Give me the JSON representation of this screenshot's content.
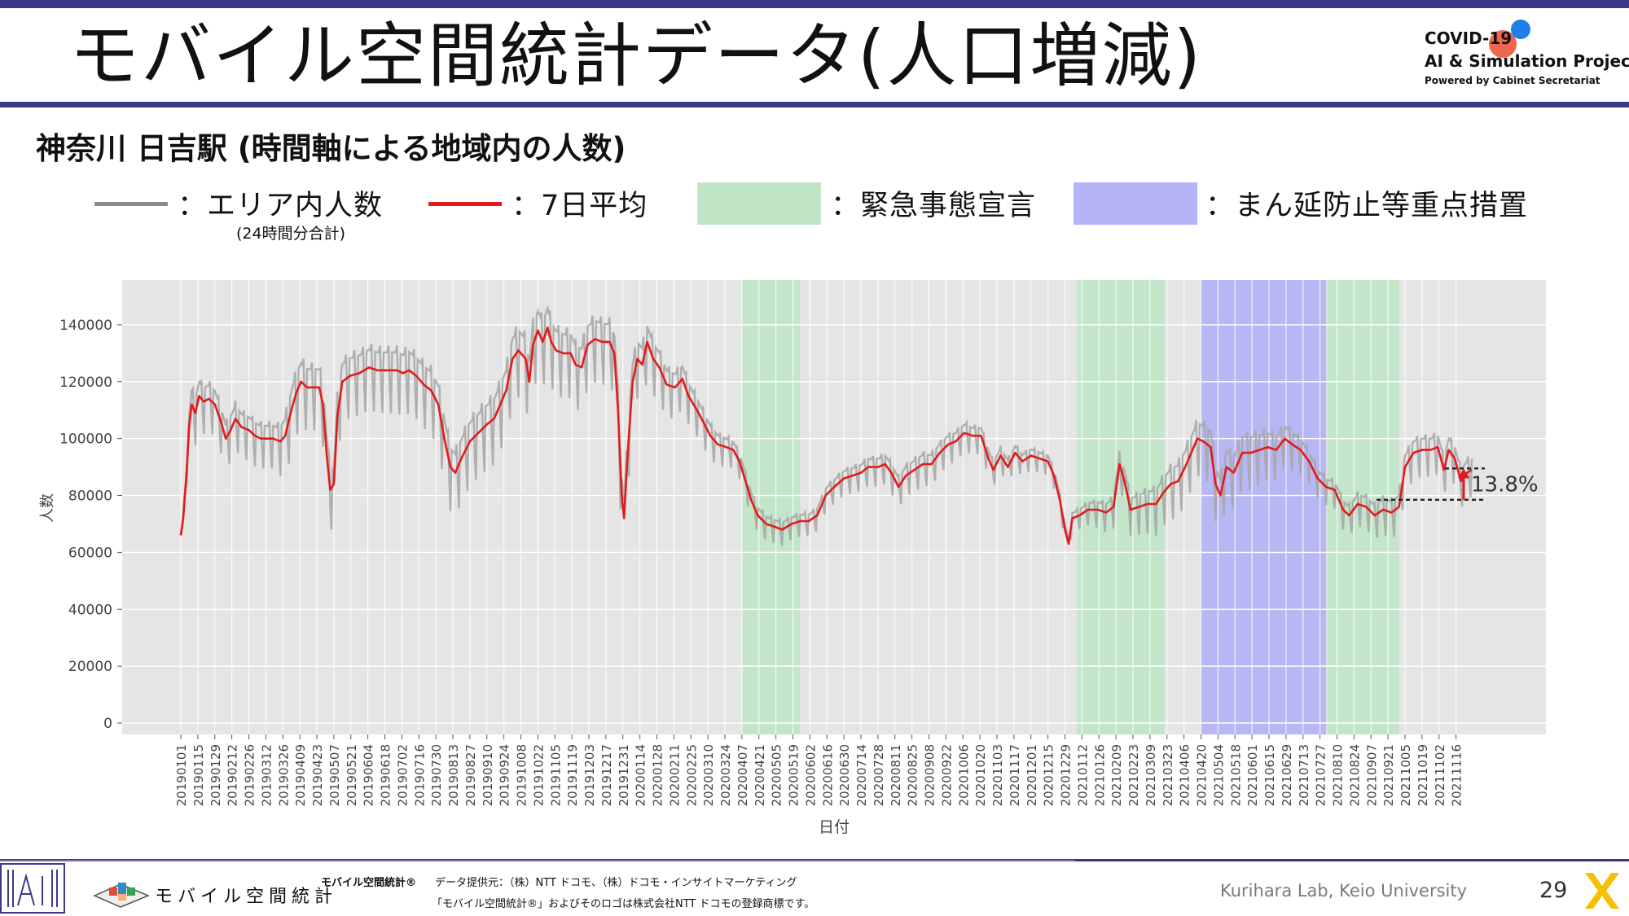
{
  "header": {
    "title": "モバイル空間統計データ(人口増減)",
    "logo_line1": "COVID-19",
    "logo_line2": "AI & Simulation Project",
    "logo_line3": "Powered by Cabinet Secretariat"
  },
  "subtitle": "神奈川 日吉駅 (時間軸による地域内の人数)",
  "legend": {
    "area_count": "：エリア内人数",
    "area_count_note": "(24時間分合計)",
    "avg7": "：7日平均",
    "emergency": "：緊急事態宣言",
    "priority": "：まん延防止等重点措置"
  },
  "colors": {
    "raw_line": "#a9a9a9",
    "avg_line": "#e31a1c",
    "emergency_band": "#bfe5c6",
    "priority_band": "#b4b4f7",
    "plot_bg": "#e5e5e5",
    "brand": "#3b3a86"
  },
  "chart_data": {
    "type": "line",
    "xlabel": "日付",
    "ylabel": "人数",
    "ylim": [
      0,
      150000
    ],
    "yticks": [
      0,
      20000,
      40000,
      60000,
      80000,
      100000,
      120000,
      140000
    ],
    "ytick_labels": [
      "0",
      "20000",
      "40000",
      "60000",
      "80000",
      "100000",
      "120000",
      "140000"
    ],
    "xlim": [
      "2019-01-01",
      "2021-12-01"
    ],
    "x_tick_labels": [
      "20190101",
      "20190115",
      "20190129",
      "20190212",
      "20190226",
      "20190312",
      "20190326",
      "20190409",
      "20190423",
      "20190507",
      "20190521",
      "20190604",
      "20190618",
      "20190702",
      "20190716",
      "20190730",
      "20190813",
      "20190827",
      "20190910",
      "20190924",
      "20191008",
      "20191022",
      "20191105",
      "20191119",
      "20191203",
      "20191217",
      "20191231",
      "20200114",
      "20200128",
      "20200211",
      "20200225",
      "20200310",
      "20200324",
      "20200407",
      "20200421",
      "20200505",
      "20200519",
      "20200602",
      "20200616",
      "20200630",
      "20200714",
      "20200728",
      "20200811",
      "20200825",
      "20200908",
      "20200922",
      "20201006",
      "20201020",
      "20201103",
      "20201117",
      "20201201",
      "20201215",
      "20201229",
      "20210112",
      "20210126",
      "20210209",
      "20210223",
      "20210309",
      "20210323",
      "20210406",
      "20210420",
      "20210504",
      "20210518",
      "20210601",
      "20210615",
      "20210629",
      "20210713",
      "20210727",
      "20210810",
      "20210824",
      "20210907",
      "20210921",
      "20211005",
      "20211019",
      "20211102",
      "20211116"
    ],
    "grid": true,
    "bands": [
      {
        "type": "emergency",
        "start": "2020-04-07",
        "end": "2020-05-25"
      },
      {
        "type": "emergency",
        "start": "2021-01-08",
        "end": "2021-03-21"
      },
      {
        "type": "priority",
        "start": "2021-04-20",
        "end": "2021-08-01"
      },
      {
        "type": "emergency",
        "start": "2021-08-02",
        "end": "2021-09-30"
      }
    ],
    "series": [
      {
        "name": "エリア内人数",
        "style": "raw",
        "amplitude": [
          [
            "2019-01-01",
            0
          ],
          [
            "2019-01-10",
            22000
          ],
          [
            "2019-03-20",
            20000
          ],
          [
            "2019-04-01",
            30000
          ],
          [
            "2019-05-08",
            28000
          ],
          [
            "2019-09-01",
            30000
          ],
          [
            "2019-10-01",
            32000
          ],
          [
            "2020-01-05",
            28000
          ],
          [
            "2020-04-01",
            12000
          ],
          [
            "2020-06-01",
            10000
          ],
          [
            "2020-09-01",
            15000
          ],
          [
            "2021-01-04",
            8000
          ],
          [
            "2021-04-01",
            25000
          ],
          [
            "2021-06-01",
            25000
          ],
          [
            "2021-08-01",
            12000
          ],
          [
            "2021-10-01",
            18000
          ],
          [
            "2021-11-30",
            18000
          ]
        ]
      },
      {
        "name": "7日平均",
        "style": "avg",
        "points": [
          [
            "2019-01-01",
            66000
          ],
          [
            "2019-01-03",
            72000
          ],
          [
            "2019-01-06",
            90000
          ],
          [
            "2019-01-08",
            105000
          ],
          [
            "2019-01-10",
            112000
          ],
          [
            "2019-01-13",
            109000
          ],
          [
            "2019-01-16",
            115000
          ],
          [
            "2019-01-20",
            113000
          ],
          [
            "2019-01-24",
            114000
          ],
          [
            "2019-01-29",
            112000
          ],
          [
            "2019-02-03",
            106000
          ],
          [
            "2019-02-07",
            100000
          ],
          [
            "2019-02-11",
            103000
          ],
          [
            "2019-02-15",
            107000
          ],
          [
            "2019-02-20",
            104000
          ],
          [
            "2019-02-26",
            103000
          ],
          [
            "2019-03-03",
            101000
          ],
          [
            "2019-03-08",
            100000
          ],
          [
            "2019-03-12",
            100000
          ],
          [
            "2019-03-18",
            100000
          ],
          [
            "2019-03-24",
            99000
          ],
          [
            "2019-03-28",
            101000
          ],
          [
            "2019-04-02",
            110000
          ],
          [
            "2019-04-06",
            116000
          ],
          [
            "2019-04-10",
            120000
          ],
          [
            "2019-04-15",
            118000
          ],
          [
            "2019-04-20",
            118000
          ],
          [
            "2019-04-25",
            118000
          ],
          [
            "2019-04-28",
            112000
          ],
          [
            "2019-05-01",
            95000
          ],
          [
            "2019-05-04",
            82000
          ],
          [
            "2019-05-07",
            84000
          ],
          [
            "2019-05-10",
            108000
          ],
          [
            "2019-05-14",
            120000
          ],
          [
            "2019-05-20",
            122000
          ],
          [
            "2019-05-28",
            123000
          ],
          [
            "2019-06-05",
            125000
          ],
          [
            "2019-06-12",
            124000
          ],
          [
            "2019-06-20",
            124000
          ],
          [
            "2019-06-28",
            124000
          ],
          [
            "2019-07-03",
            123000
          ],
          [
            "2019-07-08",
            124000
          ],
          [
            "2019-07-14",
            122000
          ],
          [
            "2019-07-20",
            119000
          ],
          [
            "2019-07-26",
            117000
          ],
          [
            "2019-08-01",
            112000
          ],
          [
            "2019-08-06",
            100000
          ],
          [
            "2019-08-11",
            90000
          ],
          [
            "2019-08-15",
            88000
          ],
          [
            "2019-08-20",
            93000
          ],
          [
            "2019-08-27",
            99000
          ],
          [
            "2019-09-03",
            102000
          ],
          [
            "2019-09-10",
            105000
          ],
          [
            "2019-09-16",
            107000
          ],
          [
            "2019-09-21",
            112000
          ],
          [
            "2019-09-26",
            117000
          ],
          [
            "2019-10-01",
            128000
          ],
          [
            "2019-10-06",
            131000
          ],
          [
            "2019-10-12",
            128000
          ],
          [
            "2019-10-15",
            120000
          ],
          [
            "2019-10-18",
            133000
          ],
          [
            "2019-10-22",
            138000
          ],
          [
            "2019-10-26",
            134000
          ],
          [
            "2019-10-30",
            139000
          ],
          [
            "2019-11-02",
            134000
          ],
          [
            "2019-11-06",
            131000
          ],
          [
            "2019-11-12",
            130000
          ],
          [
            "2019-11-18",
            130000
          ],
          [
            "2019-11-22",
            126000
          ],
          [
            "2019-11-27",
            125000
          ],
          [
            "2019-12-02",
            133000
          ],
          [
            "2019-12-08",
            135000
          ],
          [
            "2019-12-14",
            134000
          ],
          [
            "2019-12-20",
            134000
          ],
          [
            "2019-12-24",
            130000
          ],
          [
            "2019-12-27",
            110000
          ],
          [
            "2019-12-30",
            80000
          ],
          [
            "2020-01-01",
            72000
          ],
          [
            "2020-01-04",
            95000
          ],
          [
            "2020-01-08",
            120000
          ],
          [
            "2020-01-12",
            128000
          ],
          [
            "2020-01-16",
            126000
          ],
          [
            "2020-01-20",
            134000
          ],
          [
            "2020-01-25",
            128000
          ],
          [
            "2020-01-30",
            125000
          ],
          [
            "2020-02-05",
            119000
          ],
          [
            "2020-02-12",
            118000
          ],
          [
            "2020-02-18",
            121000
          ],
          [
            "2020-02-23",
            115000
          ],
          [
            "2020-03-01",
            110000
          ],
          [
            "2020-03-06",
            106000
          ],
          [
            "2020-03-12",
            101000
          ],
          [
            "2020-03-18",
            98000
          ],
          [
            "2020-03-25",
            97000
          ],
          [
            "2020-03-31",
            96000
          ],
          [
            "2020-04-05",
            92000
          ],
          [
            "2020-04-10",
            85000
          ],
          [
            "2020-04-15",
            78000
          ],
          [
            "2020-04-20",
            73000
          ],
          [
            "2020-04-27",
            70000
          ],
          [
            "2020-05-04",
            69000
          ],
          [
            "2020-05-10",
            68000
          ],
          [
            "2020-05-18",
            70000
          ],
          [
            "2020-05-25",
            71000
          ],
          [
            "2020-06-01",
            71000
          ],
          [
            "2020-06-08",
            73000
          ],
          [
            "2020-06-15",
            80000
          ],
          [
            "2020-06-22",
            83000
          ],
          [
            "2020-06-30",
            86000
          ],
          [
            "2020-07-07",
            87000
          ],
          [
            "2020-07-14",
            88000
          ],
          [
            "2020-07-20",
            90000
          ],
          [
            "2020-07-28",
            90000
          ],
          [
            "2020-08-03",
            91000
          ],
          [
            "2020-08-08",
            88000
          ],
          [
            "2020-08-14",
            83000
          ],
          [
            "2020-08-20",
            87000
          ],
          [
            "2020-08-27",
            89000
          ],
          [
            "2020-09-03",
            91000
          ],
          [
            "2020-09-10",
            91000
          ],
          [
            "2020-09-17",
            95000
          ],
          [
            "2020-09-24",
            98000
          ],
          [
            "2020-09-30",
            99000
          ],
          [
            "2020-10-07",
            102000
          ],
          [
            "2020-10-14",
            101000
          ],
          [
            "2020-10-21",
            101000
          ],
          [
            "2020-10-27",
            93000
          ],
          [
            "2020-10-31",
            89000
          ],
          [
            "2020-11-06",
            94000
          ],
          [
            "2020-11-12",
            90000
          ],
          [
            "2020-11-18",
            95000
          ],
          [
            "2020-11-24",
            92000
          ],
          [
            "2020-12-01",
            94000
          ],
          [
            "2020-12-08",
            93000
          ],
          [
            "2020-12-15",
            92000
          ],
          [
            "2020-12-20",
            87000
          ],
          [
            "2020-12-25",
            78000
          ],
          [
            "2020-12-29",
            68000
          ],
          [
            "2021-01-01",
            63000
          ],
          [
            "2021-01-04",
            72000
          ],
          [
            "2021-01-10",
            73000
          ],
          [
            "2021-01-17",
            75000
          ],
          [
            "2021-01-25",
            75000
          ],
          [
            "2021-02-01",
            74000
          ],
          [
            "2021-02-07",
            76000
          ],
          [
            "2021-02-12",
            91000
          ],
          [
            "2021-02-16",
            85000
          ],
          [
            "2021-02-21",
            75000
          ],
          [
            "2021-02-28",
            76000
          ],
          [
            "2021-03-07",
            77000
          ],
          [
            "2021-03-14",
            77000
          ],
          [
            "2021-03-20",
            81000
          ],
          [
            "2021-03-26",
            84000
          ],
          [
            "2021-04-01",
            85000
          ],
          [
            "2021-04-07",
            90000
          ],
          [
            "2021-04-13",
            96000
          ],
          [
            "2021-04-17",
            100000
          ],
          [
            "2021-04-22",
            99000
          ],
          [
            "2021-04-28",
            97000
          ],
          [
            "2021-05-02",
            84000
          ],
          [
            "2021-05-06",
            80000
          ],
          [
            "2021-05-11",
            90000
          ],
          [
            "2021-05-17",
            88000
          ],
          [
            "2021-05-24",
            95000
          ],
          [
            "2021-05-31",
            95000
          ],
          [
            "2021-06-07",
            96000
          ],
          [
            "2021-06-14",
            97000
          ],
          [
            "2021-06-21",
            96000
          ],
          [
            "2021-06-28",
            100000
          ],
          [
            "2021-07-04",
            98000
          ],
          [
            "2021-07-11",
            96000
          ],
          [
            "2021-07-18",
            92000
          ],
          [
            "2021-07-25",
            86000
          ],
          [
            "2021-08-01",
            83000
          ],
          [
            "2021-08-08",
            82000
          ],
          [
            "2021-08-15",
            75000
          ],
          [
            "2021-08-20",
            73000
          ],
          [
            "2021-08-27",
            77000
          ],
          [
            "2021-09-03",
            76000
          ],
          [
            "2021-09-10",
            73000
          ],
          [
            "2021-09-17",
            75000
          ],
          [
            "2021-09-24",
            74000
          ],
          [
            "2021-09-30",
            76000
          ],
          [
            "2021-10-05",
            90000
          ],
          [
            "2021-10-12",
            95000
          ],
          [
            "2021-10-19",
            96000
          ],
          [
            "2021-10-26",
            96000
          ],
          [
            "2021-11-01",
            97000
          ],
          [
            "2021-11-06",
            89000
          ],
          [
            "2021-11-10",
            96000
          ],
          [
            "2021-11-15",
            93000
          ],
          [
            "2021-11-20",
            85000
          ],
          [
            "2021-11-25",
            88000
          ],
          [
            "2021-11-29",
            89000
          ]
        ]
      }
    ],
    "annotation": {
      "label": "13.8%",
      "from_value": 78500,
      "to_value": 89500
    }
  },
  "footer": {
    "brand_name": "モバイル空間統計",
    "brand_mark": "モバイル空間統計®",
    "data_source": "データ提供元：（株）NTT ドコモ、（株）ドコモ・インサイトマーケティング",
    "trademark": "「モバイル空間統計®」およびそのロゴは株式会社NTT ドコモの登録商標です。",
    "credit": "Kurihara Lab, Keio University",
    "page_number": "29"
  }
}
